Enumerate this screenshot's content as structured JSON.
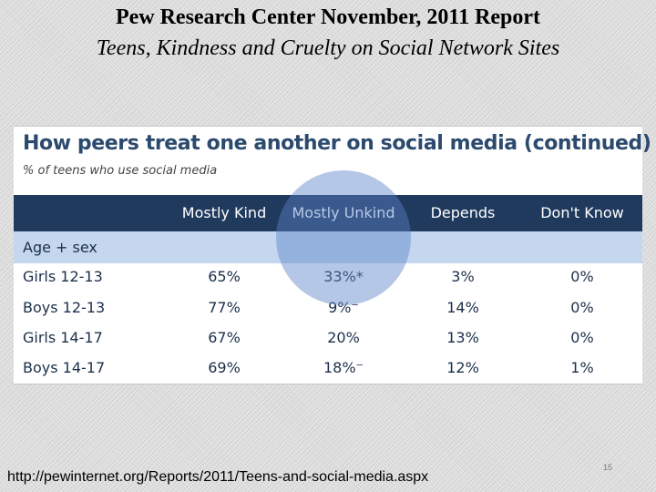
{
  "slide": {
    "title": "Pew Research Center November, 2011 Report",
    "subtitle": "Teens, Kindness and Cruelty on Social Network Sites",
    "source_url": "http://pewinternet.org/Reports/2011/Teens-and-social-media.aspx",
    "page_number": "15"
  },
  "figure": {
    "heading": "How peers treat one another on social media (continued)",
    "caption": "% of teens who use social media",
    "columns": [
      "Mostly Kind",
      "Mostly Unkind",
      "Depends",
      "Don't Know"
    ],
    "group_label": "Age + sex",
    "rows": [
      {
        "label": "Girls 12-13",
        "values": [
          "65%",
          "33%*",
          "3%",
          "0%"
        ]
      },
      {
        "label": "Boys 12-13",
        "values": [
          "77%",
          "9%⁻",
          "14%",
          "0%"
        ]
      },
      {
        "label": "Girls 14-17",
        "values": [
          "67%",
          "20%",
          "13%",
          "0%"
        ]
      },
      {
        "label": "Boys 14-17",
        "values": [
          "69%",
          "18%⁻",
          "12%",
          "1%"
        ]
      }
    ],
    "colors": {
      "header_bg": "#203a5e",
      "subheader_bg": "#c5d7ee",
      "highlight": "#5a82c8"
    }
  }
}
